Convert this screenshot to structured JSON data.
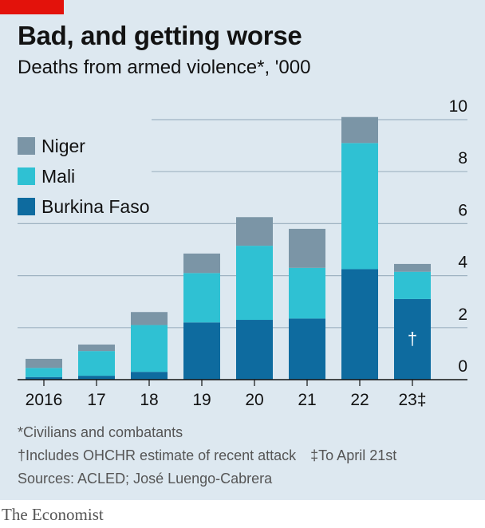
{
  "header": {
    "title": "Bad, and getting worse",
    "subtitle": "Deaths from armed violence*, '000"
  },
  "footnotes": {
    "civilians": "*Civilians and combatants",
    "ohchr": "†Includes OHCHR estimate of recent attack",
    "april": "‡To April 21st",
    "sources": "Sources: ACLED; José Luengo-Cabrera"
  },
  "brand": "The Economist",
  "colors": {
    "niger": "#7b95a6",
    "mali": "#2fc1d3",
    "burkina_faso": "#0e6b9f",
    "accent": "#e3120b"
  },
  "chart_data": {
    "type": "bar",
    "stacked": true,
    "categories": [
      "2016",
      "17",
      "18",
      "19",
      "20",
      "21",
      "22",
      "23‡"
    ],
    "series": [
      {
        "name": "Burkina Faso",
        "color": "#0e6b9f",
        "values": [
          0.1,
          0.15,
          0.3,
          2.2,
          2.3,
          2.35,
          4.25,
          3.1
        ]
      },
      {
        "name": "Mali",
        "color": "#2fc1d3",
        "values": [
          0.35,
          0.95,
          1.8,
          1.9,
          2.85,
          1.95,
          4.85,
          1.05
        ]
      },
      {
        "name": "Niger",
        "color": "#7b95a6",
        "values": [
          0.35,
          0.25,
          0.5,
          0.75,
          1.1,
          1.5,
          1.0,
          0.3
        ]
      }
    ],
    "legend_order": [
      "Niger",
      "Mali",
      "Burkina Faso"
    ],
    "ylim": [
      0,
      10
    ],
    "yticks": [
      "0",
      "2",
      "4",
      "6",
      "8",
      "10"
    ],
    "y_axis_side": "right",
    "grid": true,
    "legend_position": "top-left",
    "annotation": {
      "category": "23‡",
      "text": "†"
    }
  }
}
